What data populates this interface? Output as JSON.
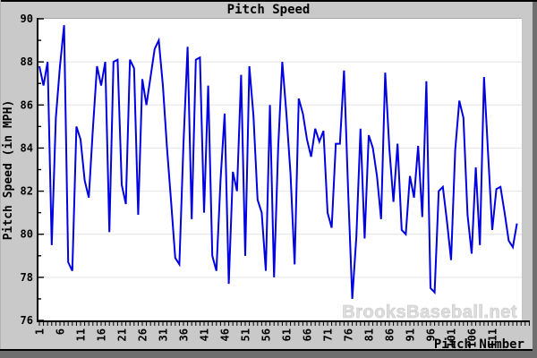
{
  "watermark": {
    "text": "BrooksBaseball.net"
  },
  "colors": {
    "line": "#0000e0",
    "panel_bg": "#c9c9c9",
    "plot_bg": "#ffffff",
    "grid": "#e4e4e4",
    "axis": "#000000",
    "shadow": "#6f6f6f",
    "watermark": "#dedede"
  },
  "chart_data": {
    "type": "line",
    "title": "Pitch Speed",
    "xlabel": "Pitch Number",
    "ylabel": "Pitch Speed (in MPH)",
    "ylim": [
      76,
      90
    ],
    "y_tick_step": 2,
    "y_minor_step": 1,
    "y_tick_labels": [
      "76",
      "78",
      "80",
      "82",
      "84",
      "86",
      "88",
      "90"
    ],
    "grid": "horizontal",
    "legend": "none",
    "x_start": 1,
    "x_tick_positions": [
      1,
      6,
      11,
      16,
      21,
      26,
      31,
      36,
      41,
      46,
      51,
      56,
      61,
      66,
      71,
      76,
      81,
      86,
      91,
      96,
      101,
      106,
      111
    ],
    "x_tick_labels": [
      "1",
      "6",
      "11",
      "16",
      "21",
      "26",
      "31",
      "36",
      "41",
      "46",
      "51",
      "56",
      "61",
      "66",
      "71",
      "76",
      "81",
      "86",
      "91",
      "96",
      "101",
      "106",
      "111"
    ],
    "series": [
      {
        "name": "pitch-speed-mph",
        "values": [
          87.8,
          86.9,
          88.0,
          79.5,
          85.4,
          87.8,
          89.7,
          78.7,
          78.3,
          85.0,
          84.4,
          82.5,
          81.7,
          84.9,
          87.8,
          86.9,
          88.0,
          80.1,
          88.0,
          88.1,
          82.3,
          81.4,
          88.1,
          87.7,
          80.9,
          87.2,
          86.0,
          87.3,
          88.6,
          89.0,
          86.9,
          84.0,
          81.5,
          78.9,
          78.6,
          84.2,
          88.7,
          80.7,
          88.1,
          88.2,
          81.0,
          86.9,
          79.0,
          78.3,
          82.5,
          85.6,
          77.7,
          82.9,
          82.0,
          87.4,
          79.0,
          87.8,
          85.5,
          81.6,
          81.0,
          78.3,
          86.0,
          78.0,
          84.0,
          88.0,
          85.6,
          82.8,
          78.6,
          86.3,
          85.6,
          84.4,
          83.6,
          84.9,
          84.3,
          84.8,
          81.0,
          80.3,
          84.2,
          84.2,
          87.6,
          82.0,
          77.0,
          79.9,
          84.9,
          79.8,
          84.6,
          84.0,
          82.7,
          80.7,
          87.5,
          84.0,
          81.5,
          84.2,
          80.2,
          80.0,
          82.7,
          81.7,
          84.1,
          80.8,
          87.1,
          77.5,
          77.3,
          82.0,
          82.2,
          80.6,
          78.8,
          83.9,
          86.2,
          85.4,
          80.9,
          79.1,
          83.1,
          79.5,
          87.3,
          83.7,
          80.2,
          82.1,
          82.2,
          81.0,
          79.7,
          79.4,
          80.5
        ]
      }
    ]
  }
}
